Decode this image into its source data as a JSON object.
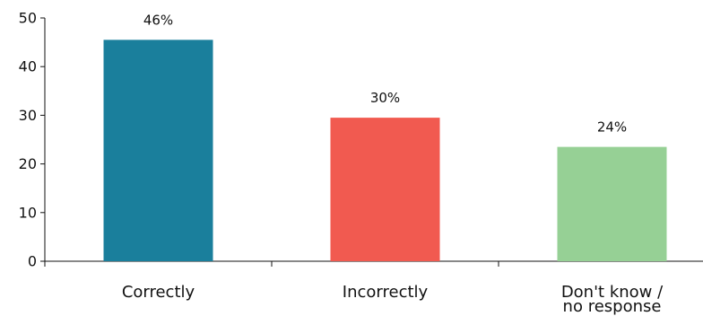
{
  "chart_data": {
    "type": "bar",
    "categories": [
      "Correctly",
      "Incorrectly",
      "Don't know / no response"
    ],
    "category_lines": [
      [
        "Correctly"
      ],
      [
        "Incorrectly"
      ],
      [
        "Don't know /",
        "no response"
      ]
    ],
    "values": [
      45.5,
      29.5,
      23.5
    ],
    "data_labels": [
      "46%",
      "30%",
      "24%"
    ],
    "colors": [
      "#1a7f9c",
      "#f15a50",
      "#96d095"
    ],
    "ylim": [
      0,
      50
    ],
    "yticks": [
      0,
      10,
      20,
      30,
      40,
      50
    ],
    "ytick_labels": [
      "0",
      "10",
      "20",
      "30",
      "40",
      "50"
    ],
    "grid": false,
    "title": "",
    "xlabel": "",
    "ylabel": ""
  }
}
